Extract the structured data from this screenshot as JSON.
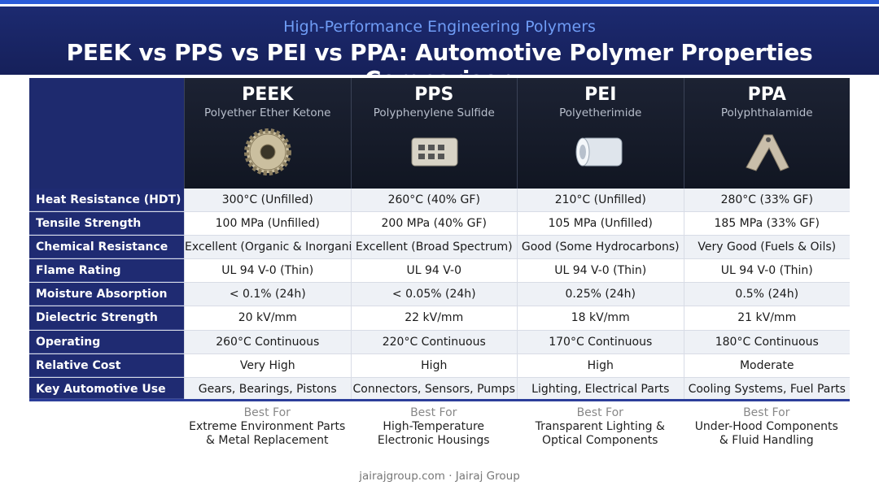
{
  "header": {
    "subtitle": "High-Performance Engineering Polymers",
    "title": "PEEK vs PPS vs PEI vs PPA: Automotive Polymer Properties Comparison"
  },
  "table": {
    "columns": [
      {
        "name": "PEEK",
        "full_name": "Polyether Ether Ketone",
        "best_for_label": "Best For",
        "best_for": [
          "Extreme Environment Parts",
          "& Metal Replacement"
        ]
      },
      {
        "name": "PPS",
        "full_name": "Polyphenylene Sulfide",
        "best_for_label": "Best For",
        "best_for": [
          "High-Temperature",
          "Electronic Housings"
        ]
      },
      {
        "name": "PEI",
        "full_name": "Polyetherimide",
        "best_for_label": "Best For",
        "best_for": [
          "Transparent Lighting &",
          "Optical Components"
        ]
      },
      {
        "name": "PPA",
        "full_name": "Polyphthalamide",
        "best_for_label": "Best For",
        "best_for": [
          "Under-Hood Components",
          "& Fluid Handling"
        ]
      }
    ],
    "rows": [
      [
        "Heat Resistance (HDT)",
        "300°C (Unfilled)",
        "260°C (40% GF)",
        "210°C (Unfilled)",
        "280°C (33% GF)"
      ],
      [
        "Tensile Strength",
        "100 MPa (Unfilled)",
        "200 MPa (40% GF)",
        "105 MPa (Unfilled)",
        "185 MPa (33% GF)"
      ],
      [
        "Chemical Resistance",
        "Excellent (Organic & Inorganic)",
        "Excellent (Broad Spectrum)",
        "Good (Some Hydrocarbons)",
        "Very Good (Fuels & Oils)"
      ],
      [
        "Flame Rating",
        "UL 94 V-0 (Thin)",
        "UL 94 V-0",
        "UL 94 V-0 (Thin)",
        "UL 94 V-0 (Thin)"
      ],
      [
        "Moisture Absorption",
        "< 0.1% (24h)",
        "< 0.05% (24h)",
        "0.25% (24h)",
        "0.5% (24h)"
      ],
      [
        "Dielectric Strength",
        "20 kV/mm",
        "22 kV/mm",
        "18 kV/mm",
        "21 kV/mm"
      ],
      [
        "Operating Temperature",
        "260°C Continuous",
        "220°C Continuous",
        "170°C Continuous",
        "180°C Continuous"
      ],
      [
        "Relative Cost",
        "Very High",
        "High",
        "High",
        "Moderate"
      ],
      [
        "Key Automotive Use",
        "Gears, Bearings, Pistons",
        "Connectors, Sensors, Pumps",
        "Lighting, Electrical Parts",
        "Cooling Systems, Fuel Parts"
      ]
    ]
  },
  "footer": {
    "text": "jairajgroup.com · Jairaj Group"
  }
}
